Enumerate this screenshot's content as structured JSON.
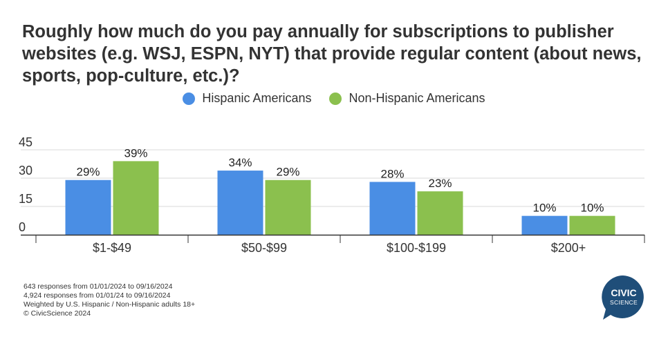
{
  "title": "Roughly how much do you pay annually for subscriptions to publisher websites (e.g. WSJ, ESPN, NYT) that provide regular content (about news, sports, pop-culture, etc.)?",
  "colors": {
    "hispanic": "#4A8EE4",
    "non_hispanic": "#8BC04E",
    "grid": "#d9d9d9",
    "axis": "#333333",
    "logo": "#1f4e79"
  },
  "footer": {
    "line1": "643 responses from 01/01/2024 to 09/16/2024",
    "line2": "4,924 responses from 01/01/24 to 09/16/2024",
    "line3": "Weighted by U.S. Hispanic / Non-Hispanic adults 18+",
    "line4": "© CivicScience 2024"
  },
  "logo": {
    "line1": "CIVIC",
    "line2": "SCIENCE"
  },
  "chart_data": {
    "type": "bar",
    "title": "Roughly how much do you pay annually for subscriptions to publisher websites (e.g. WSJ, ESPN, NYT) that provide regular content (about news, sports, pop-culture, etc.)?",
    "categories": [
      "$1-$49",
      "$50-$99",
      "$100-$199",
      "$200+"
    ],
    "series": [
      {
        "name": "Hispanic Americans",
        "values": [
          29,
          34,
          28,
          10
        ],
        "labels": [
          "29%",
          "34%",
          "28%",
          "10%"
        ],
        "color": "#4A8EE4"
      },
      {
        "name": "Non-Hispanic Americans",
        "values": [
          39,
          29,
          23,
          10
        ],
        "labels": [
          "39%",
          "29%",
          "23%",
          "10%"
        ],
        "color": "#8BC04E"
      }
    ],
    "yticks": [
      0,
      15,
      30,
      45
    ],
    "ylim": [
      0,
      45
    ],
    "xlabel": "",
    "ylabel": "",
    "grid": true,
    "legend": "top-center"
  }
}
